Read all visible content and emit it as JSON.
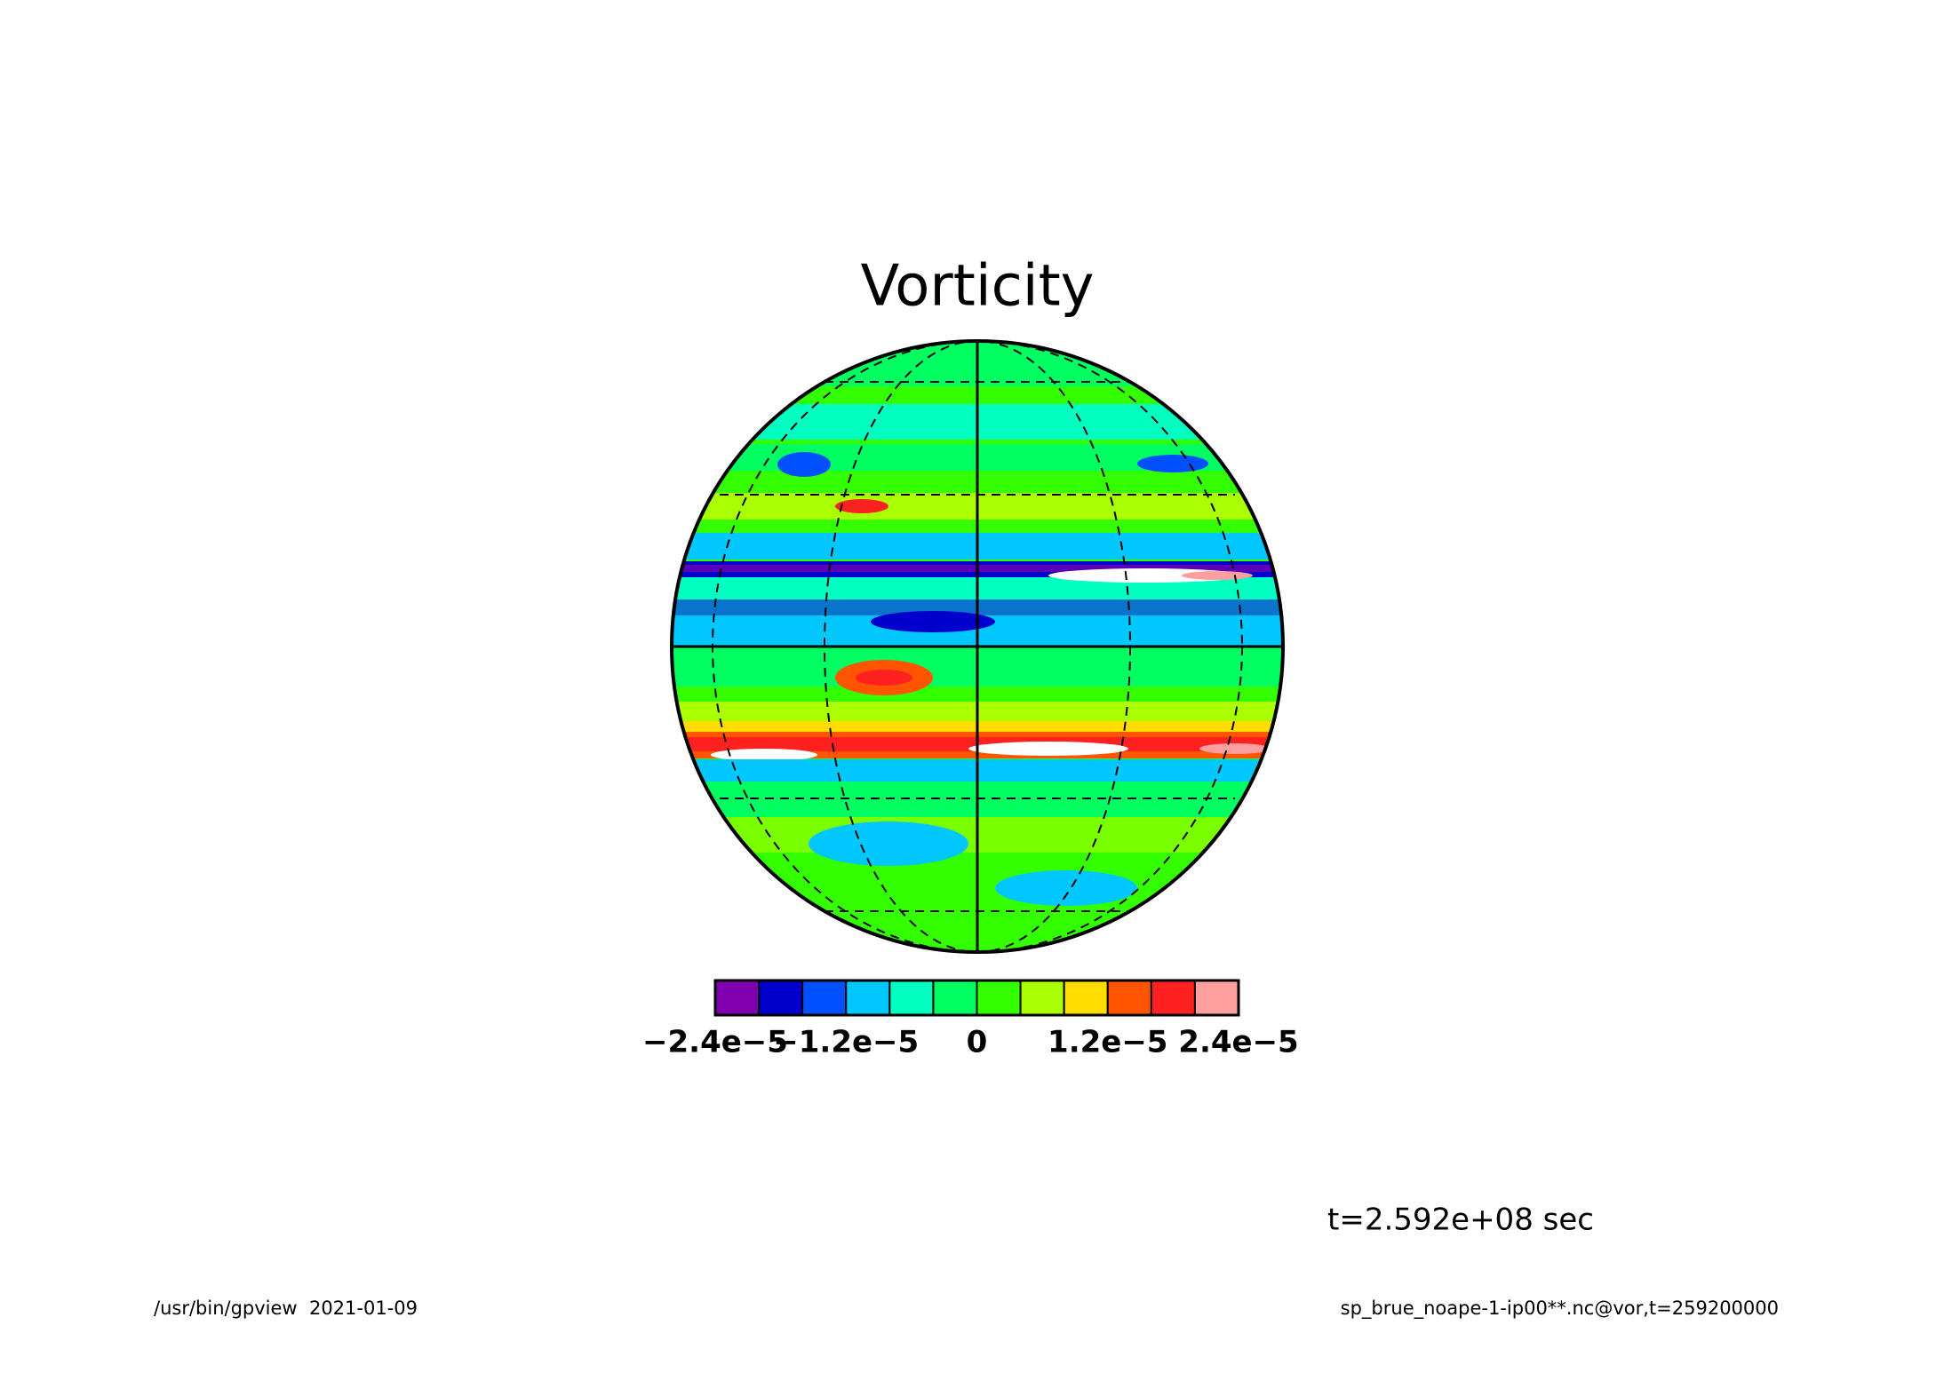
{
  "chart_data": {
    "type": "contour",
    "title": "Vorticity",
    "colorbar": {
      "bins": [
        -2.4e-05,
        -2e-05,
        -1.6e-05,
        -1.2e-05,
        -8e-06,
        -4e-06,
        0,
        4e-06,
        8e-06,
        1.2e-05,
        1.6e-05,
        2e-05,
        2.4e-05
      ],
      "colors": [
        "#8000b0",
        "#0000cc",
        "#0050ff",
        "#00c8ff",
        "#00ffc0",
        "#00ff60",
        "#33ff00",
        "#aaff00",
        "#ffdd00",
        "#ff5500",
        "#ff2020",
        "#ff9e9e"
      ],
      "xlim": [
        -2.4e-05,
        2.4e-05
      ],
      "xticks": [
        {
          "value": -2.4e-05,
          "label": "−2.4e−5"
        },
        {
          "value": -1.2e-05,
          "label": "−1.2e−5"
        },
        0,
        {
          "value": 1.2e-05,
          "label": "1.2e−5"
        },
        {
          "value": 2.4e-05,
          "label": "2.4e−5"
        }
      ]
    },
    "annotations": {
      "time": "t=2.592e+08 sec",
      "footer_left": "/usr/bin/gpview  2021-01-09",
      "footer_right": "sp_brue_noape-1-ip00**.nc@vor,t=259200000"
    }
  }
}
